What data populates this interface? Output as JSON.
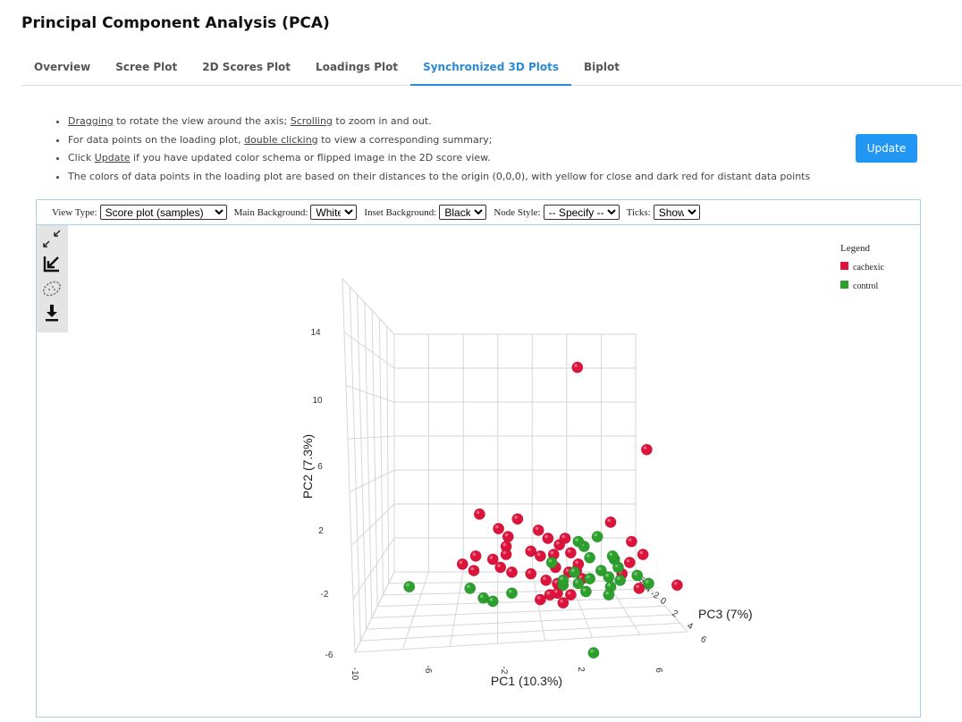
{
  "page_title": "Principal Component Analysis (PCA)",
  "tabs": [
    {
      "label": "Overview"
    },
    {
      "label": "Scree Plot"
    },
    {
      "label": "2D Scores Plot"
    },
    {
      "label": "Loadings Plot"
    },
    {
      "label": "Synchronized 3D Plots",
      "active": true
    },
    {
      "label": "Biplot"
    }
  ],
  "instructions": {
    "line1": {
      "link1": "Dragging",
      "text1": " to rotate the view around the axis; ",
      "link2": "Scrolling",
      "text2": " to zoom in and out."
    },
    "line2": {
      "text1": "For data points on the loading plot, ",
      "link": "double clicking",
      "text2": " to view a corresponding summary;"
    },
    "line3": {
      "text1": "Click ",
      "link": "Update",
      "text2": " if you have updated color schema or flipped image in the 2D score view."
    },
    "line4": "The colors of data points in the loading plot are based on their distances to the origin (0,0,0), with yellow for close and dark red for distant data points"
  },
  "update_button": "Update",
  "controls": {
    "view_type": {
      "label": "View Type:",
      "value": "Score plot (samples)"
    },
    "main_bg": {
      "label": "Main Background:",
      "value": "White"
    },
    "inset_bg": {
      "label": "Inset Background:",
      "value": "Black"
    },
    "node_style": {
      "label": "Node Style:",
      "value": "-- Specify --"
    },
    "ticks": {
      "label": "Ticks:",
      "value": "Show"
    }
  },
  "toolbox": [
    "fullscreen-icon",
    "reset-view-icon",
    "lasso-icon",
    "download-icon"
  ],
  "legend": {
    "title": "Legend",
    "items": [
      {
        "label": "cachexic",
        "color": "#dc143c"
      },
      {
        "label": "control",
        "color": "#2ca02c"
      }
    ]
  },
  "chart_data": {
    "type": "scatter",
    "dimensions": 3,
    "xlabel": "PC1 (10.3%)",
    "ylabel": "PC2 (7.3%)",
    "zlabel": "PC3 (7%)",
    "x_ticks": [
      "-10",
      "-6",
      "-2",
      "2",
      "6"
    ],
    "y_ticks": [
      "-6",
      "-2",
      "2",
      "6",
      "10",
      "14"
    ],
    "z_ticks": [
      "-6",
      "-4",
      "-2",
      "0",
      "2",
      "4",
      "6"
    ],
    "xlim": [
      -12,
      8
    ],
    "ylim": [
      -6,
      16
    ],
    "series": [
      {
        "name": "cachexic",
        "color": "#dc143c",
        "points": [
          [
            -0.15,
            12.0
          ],
          [
            3.5,
            6.9
          ],
          [
            -5.3,
            2.9
          ],
          [
            -4.3,
            2.0
          ],
          [
            -3.8,
            1.5
          ],
          [
            -3.3,
            2.6
          ],
          [
            -3.9,
            0.9
          ],
          [
            -5.5,
            0.3
          ],
          [
            -6.2,
            -0.2
          ],
          [
            -5.6,
            -0.6
          ],
          [
            -4.6,
            0.1
          ],
          [
            -4.2,
            -0.4
          ],
          [
            -3.6,
            -0.7
          ],
          [
            -3.9,
            0.4
          ],
          [
            -2.2,
            1.9
          ],
          [
            -1.7,
            1.4
          ],
          [
            -1.1,
            1.0
          ],
          [
            -2.6,
            0.6
          ],
          [
            -2.1,
            0.3
          ],
          [
            -1.4,
            0.4
          ],
          [
            -2.6,
            -0.8
          ],
          [
            -1.3,
            -0.4
          ],
          [
            -1.2,
            -1.4
          ],
          [
            -1.8,
            -1.2
          ],
          [
            -1.2,
            -2.0
          ],
          [
            -0.9,
            -2.6
          ],
          [
            -0.5,
            -2.1
          ],
          [
            -1.6,
            -2.1
          ],
          [
            -2.1,
            -2.4
          ],
          [
            -0.6,
            -0.7
          ],
          [
            -0.2,
            -0.6
          ],
          [
            0.1,
            -1.1
          ],
          [
            -0.8,
            1.4
          ],
          [
            -0.5,
            0.5
          ],
          [
            -0.1,
            -0.2
          ],
          [
            1.6,
            2.4
          ],
          [
            2.7,
            1.2
          ],
          [
            3.3,
            0.4
          ],
          [
            2.6,
            -0.1
          ],
          [
            2.2,
            -0.8
          ],
          [
            3.1,
            -1.7
          ],
          [
            5.1,
            -1.5
          ]
        ]
      },
      {
        "name": "control",
        "color": "#2ca02c",
        "points": [
          [
            -9.0,
            -1.6
          ],
          [
            -5.8,
            -1.7
          ],
          [
            -5.1,
            -2.3
          ],
          [
            -4.6,
            -2.5
          ],
          [
            -3.6,
            -2.0
          ],
          [
            -1.5,
            -0.1
          ],
          [
            -0.3,
            -0.7
          ],
          [
            -0.9,
            -1.5
          ],
          [
            -0.1,
            -1.4
          ],
          [
            0.5,
            -1.1
          ],
          [
            0.2,
            0.9
          ],
          [
            -0.1,
            1.2
          ],
          [
            0.5,
            0.2
          ],
          [
            1.1,
            -0.6
          ],
          [
            1.5,
            -1.0
          ],
          [
            2.0,
            -0.4
          ],
          [
            1.8,
            0.1
          ],
          [
            0.9,
            1.5
          ],
          [
            1.7,
            0.3
          ],
          [
            2.1,
            -1.2
          ],
          [
            3.0,
            -0.9
          ],
          [
            3.6,
            -1.4
          ],
          [
            1.5,
            -2.1
          ],
          [
            0.3,
            -1.9
          ],
          [
            -0.9,
            -1.2
          ],
          [
            0.7,
            -5.7
          ],
          [
            1.6,
            -1.6
          ]
        ]
      }
    ]
  }
}
